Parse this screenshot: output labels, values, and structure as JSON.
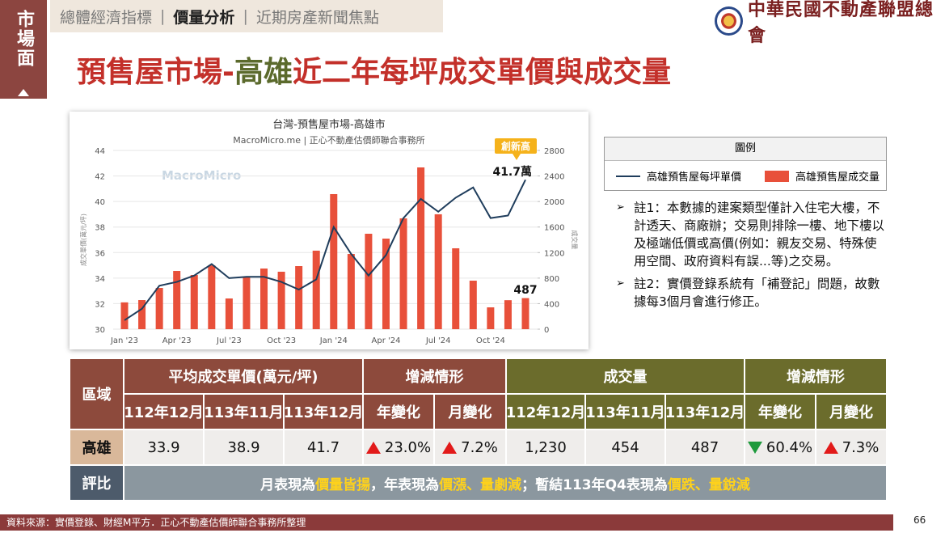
{
  "side_tab": "市場面",
  "nav": [
    "總體經濟指標",
    "價量分析",
    "近期房產新聞焦點"
  ],
  "nav_active": 1,
  "logo_text": "中華民國不動產聯盟總會",
  "title": [
    {
      "text": "預售屋市場-",
      "color": "#c3302a"
    },
    {
      "text": "高雄",
      "color": "#5b6a2c"
    },
    {
      "text": "近二年每坪成交單價與成交量",
      "color": "#c3302a"
    }
  ],
  "chart_data": {
    "type": "combo",
    "title": "台灣-預售屋市場-高雄市",
    "subtitle": "MacroMicro.me | 正心不動產估價師聯合事務所",
    "watermark": "MacroMicro",
    "y_label": "成交單價(萬元/坪)",
    "y2_label": "成交量",
    "categories": [
      "Jan '23",
      null,
      null,
      "Apr '23",
      null,
      null,
      "Jul '23",
      null,
      null,
      "Oct '23",
      null,
      null,
      "Jan '24",
      null,
      null,
      "Apr '24",
      null,
      null,
      "Jul '24",
      null,
      null,
      "Oct '24",
      null,
      null
    ],
    "series": [
      {
        "name": "高雄預售屋每坪單價",
        "type": "line",
        "color": "#1f3d5c",
        "values": [
          30.7,
          31.6,
          33.4,
          33.7,
          34.2,
          35.1,
          34.0,
          34.1,
          34.1,
          33.7,
          33.1,
          33.9,
          38.0,
          35.9,
          34.2,
          35.8,
          38.7,
          40.2,
          39.2,
          40.3,
          41.1,
          38.7,
          38.9,
          41.7
        ]
      },
      {
        "name": "高雄預售屋成交量",
        "type": "bar",
        "axis": "y2",
        "color": "#e8503a",
        "values": [
          420,
          456,
          646,
          912,
          849,
          1000,
          481,
          823,
          950,
          900,
          988,
          1230,
          2116,
          1178,
          1495,
          1419,
          1736,
          2534,
          1800,
          1267,
          760,
          342,
          454,
          487
        ]
      }
    ],
    "ylim": [
      30,
      44
    ],
    "yticks": [
      30,
      32,
      34,
      36,
      38,
      40,
      42,
      44
    ],
    "y2lim": [
      0,
      2800
    ],
    "y2ticks": [
      0,
      400,
      800,
      1200,
      1600,
      2000,
      2400,
      2800
    ],
    "grid": true,
    "annotations": [
      "創新高",
      "41.7萬",
      "487"
    ]
  },
  "legend_title": "圖例",
  "notes": [
    "註1：本數據的建案類型僅計入住宅大樓，不計透天、商廠辦；交易則排除一樓、地下樓以及極端低價或高價(例如：親友交易、特殊使用空間、政府資料有誤...等)之交易。",
    "註2：實價登錄系統有「補登記」問題，故數據每3個月會進行修正。"
  ],
  "table": {
    "header_row1": [
      "區域",
      "平均成交單價(萬元/坪)",
      "增減情形",
      "成交量",
      "增減情形"
    ],
    "header_row2": [
      "112年12月",
      "113年11月",
      "113年12月",
      "年變化",
      "月變化",
      "112年12月",
      "113年11月",
      "113年12月",
      "年變化",
      "月變化"
    ],
    "row": {
      "region": "高雄",
      "cells": [
        {
          "text": "33.9"
        },
        {
          "text": "38.9"
        },
        {
          "text": "41.7"
        },
        {
          "direction": "up",
          "text": "23.0%"
        },
        {
          "direction": "up",
          "text": "7.2%"
        },
        {
          "text": "1,230"
        },
        {
          "text": "454"
        },
        {
          "text": "487"
        },
        {
          "direction": "down",
          "text": "60.4%"
        },
        {
          "direction": "up",
          "text": "7.3%"
        }
      ]
    },
    "summary_label": "評比",
    "summary": [
      {
        "text": "月表現為",
        "highlight": false
      },
      {
        "text": "價量皆揚",
        "highlight": true
      },
      {
        "text": "，年表現為",
        "highlight": false
      },
      {
        "text": "價漲、量劇減",
        "highlight": true
      },
      {
        "text": "；暫結113年Q4表現為",
        "highlight": false
      },
      {
        "text": "價跌、量銳減",
        "highlight": true
      }
    ]
  },
  "footer": "資料來源：實價登錄、財經M平方．正心不動產估價師聯合事務所整理",
  "page_number": 66
}
